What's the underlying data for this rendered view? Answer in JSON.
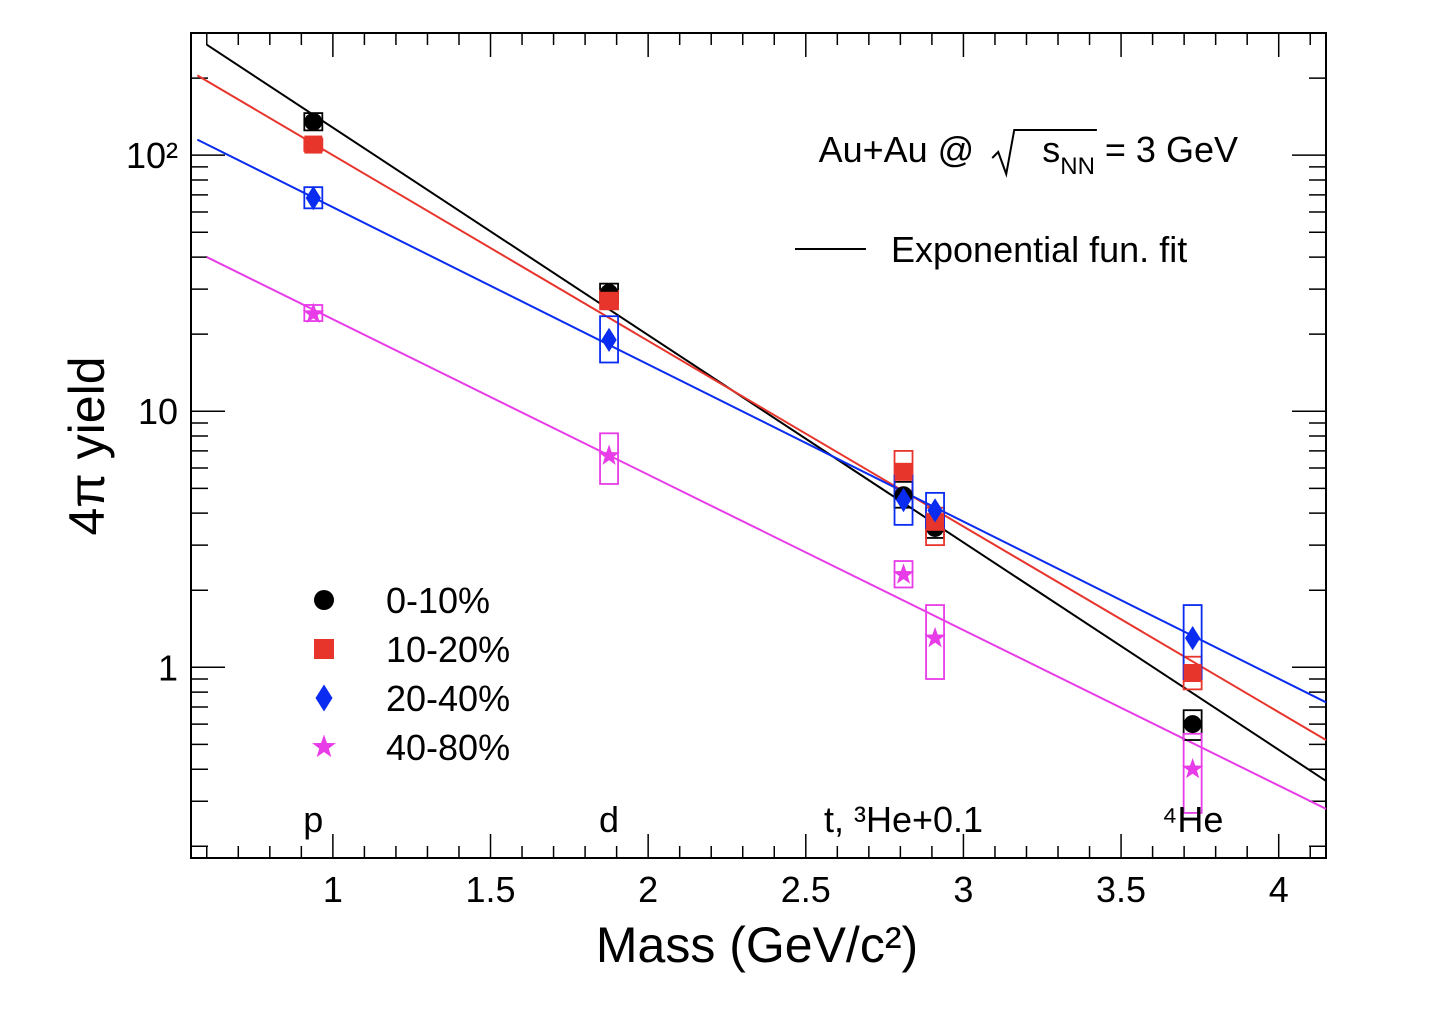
{
  "chart_data": {
    "type": "scatter",
    "title": "",
    "annotation": {
      "prefix": "Au+Au @ ",
      "sqrt_var": "s",
      "sqrt_sub": "NN",
      "suffix": " = 3 GeV"
    },
    "xlabel": "Mass (GeV/c²)",
    "ylabel": "4π yield",
    "x_scale": "linear",
    "y_scale": "log",
    "xlim": [
      0.55,
      4.15
    ],
    "ylim": [
      0.18,
      300
    ],
    "x_ticks": [
      1,
      1.5,
      2,
      2.5,
      3,
      3.5,
      4
    ],
    "x_tick_labels": [
      "1",
      "1.5",
      "2",
      "2.5",
      "3",
      "3.5",
      "4"
    ],
    "y_ticks": [
      1,
      10,
      100
    ],
    "y_tick_labels": [
      "1",
      "10",
      "10²"
    ],
    "fit_legend": "Exponential fun. fit",
    "particle_labels": [
      {
        "text": "p",
        "x": 0.938
      },
      {
        "text": "d",
        "x": 1.876
      },
      {
        "text": "t, ³He+0.1",
        "x": 2.81
      },
      {
        "text": "⁴He",
        "x": 3.727
      }
    ],
    "series": [
      {
        "name": "0-10%",
        "color": "#000000",
        "marker": "circle",
        "points": [
          {
            "x": 0.938,
            "y": 135,
            "sys": [
              125,
              146
            ]
          },
          {
            "x": 1.876,
            "y": 29,
            "sys": [
              26.5,
              31.5
            ]
          },
          {
            "x": 2.81,
            "y": 4.7,
            "sys": [
              4.2,
              5.3
            ]
          },
          {
            "x": 2.91,
            "y": 3.5,
            "sys": [
              3.2,
              3.85
            ]
          },
          {
            "x": 3.727,
            "y": 0.6,
            "sys": [
              0.52,
              0.68
            ]
          }
        ],
        "fit": [
          {
            "x": 0.6,
            "y": 270
          },
          {
            "x": 4.15,
            "y": 0.36
          }
        ]
      },
      {
        "name": "10-20%",
        "color": "#e8352c",
        "marker": "square",
        "points": [
          {
            "x": 0.938,
            "y": 110,
            "sys": [
              104,
              116
            ]
          },
          {
            "x": 1.876,
            "y": 27,
            "sys": [
              25,
              29.5
            ]
          },
          {
            "x": 2.81,
            "y": 5.8,
            "sys": [
              4.9,
              7.0
            ]
          },
          {
            "x": 2.91,
            "y": 3.7,
            "sys": [
              3.0,
              4.2
            ]
          },
          {
            "x": 3.727,
            "y": 0.95,
            "sys": [
              0.82,
              1.1
            ]
          }
        ],
        "fit": [
          {
            "x": 0.57,
            "y": 205
          },
          {
            "x": 4.15,
            "y": 0.52
          }
        ]
      },
      {
        "name": "20-40%",
        "color": "#0a2cf0",
        "marker": "diamond",
        "points": [
          {
            "x": 0.938,
            "y": 68,
            "sys": [
              62,
              75
            ]
          },
          {
            "x": 1.876,
            "y": 19,
            "sys": [
              15.5,
              23.5
            ]
          },
          {
            "x": 2.81,
            "y": 4.5,
            "sys": [
              3.6,
              5.6
            ]
          },
          {
            "x": 2.91,
            "y": 4.1,
            "sys": [
              3.5,
              4.8
            ]
          },
          {
            "x": 3.727,
            "y": 1.3,
            "sys": [
              0.9,
              1.75
            ]
          }
        ],
        "fit": [
          {
            "x": 0.57,
            "y": 115
          },
          {
            "x": 4.15,
            "y": 0.73
          }
        ]
      },
      {
        "name": "40-80%",
        "color": "#e83ce8",
        "marker": "star",
        "points": [
          {
            "x": 0.938,
            "y": 24,
            "sys": [
              22.5,
              26
            ]
          },
          {
            "x": 1.876,
            "y": 6.7,
            "sys": [
              5.2,
              8.2
            ]
          },
          {
            "x": 2.81,
            "y": 2.3,
            "sys": [
              2.05,
              2.6
            ]
          },
          {
            "x": 2.91,
            "y": 1.3,
            "sys": [
              0.9,
              1.75
            ]
          },
          {
            "x": 3.727,
            "y": 0.4,
            "sys": [
              0.27,
              0.55
            ]
          }
        ],
        "fit": [
          {
            "x": 0.6,
            "y": 40
          },
          {
            "x": 4.15,
            "y": 0.28
          }
        ]
      }
    ]
  }
}
